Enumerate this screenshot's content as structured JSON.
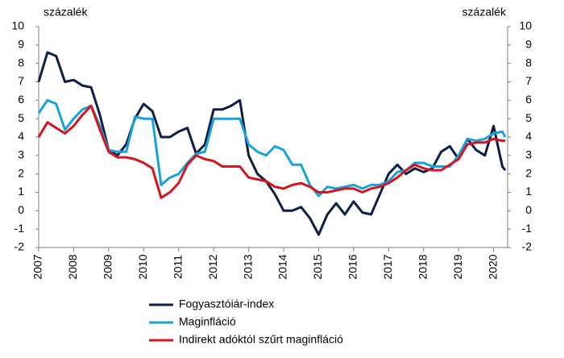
{
  "chart_data": {
    "type": "line",
    "y_label": "százalék",
    "y2_label": "százalék",
    "x": [
      2007,
      2007.25,
      2007.5,
      2007.75,
      2008,
      2008.25,
      2008.5,
      2008.75,
      2009,
      2009.25,
      2009.5,
      2009.75,
      2010,
      2010.25,
      2010.5,
      2010.75,
      2011,
      2011.25,
      2011.5,
      2011.75,
      2012,
      2012.25,
      2012.5,
      2012.75,
      2013,
      2013.25,
      2013.5,
      2013.75,
      2014,
      2014.25,
      2014.5,
      2014.75,
      2015,
      2015.25,
      2015.5,
      2015.75,
      2016,
      2016.25,
      2016.5,
      2016.75,
      2017,
      2017.25,
      2017.5,
      2017.75,
      2018,
      2018.25,
      2018.5,
      2018.75,
      2019,
      2019.25,
      2019.5,
      2019.75,
      2020,
      2020.25,
      2020.33
    ],
    "series": [
      {
        "name": "Fogyasztóiár-index",
        "color": "#0d1f45",
        "values": [
          7.0,
          8.6,
          8.4,
          7.0,
          7.1,
          6.8,
          6.7,
          5.2,
          3.3,
          3.0,
          3.6,
          5.0,
          5.8,
          5.4,
          4.0,
          4.0,
          4.3,
          4.5,
          3.1,
          3.6,
          5.5,
          5.5,
          5.7,
          6.0,
          3.0,
          2.0,
          1.6,
          0.9,
          0.0,
          0.0,
          0.2,
          -0.4,
          -1.3,
          -0.2,
          0.4,
          -0.2,
          0.5,
          -0.1,
          -0.2,
          0.9,
          2.0,
          2.5,
          2.0,
          2.3,
          2.1,
          2.3,
          3.2,
          3.5,
          2.8,
          3.9,
          3.3,
          3.0,
          4.6,
          2.4,
          2.2
        ]
      },
      {
        "name": "Maginfláció",
        "color": "#16a2dc",
        "values": [
          5.3,
          6.0,
          5.8,
          4.4,
          5.0,
          5.5,
          5.7,
          4.6,
          3.3,
          3.2,
          3.2,
          5.1,
          5.0,
          5.0,
          1.4,
          1.8,
          2.0,
          2.6,
          3.1,
          3.2,
          5.0,
          5.0,
          5.0,
          5.0,
          3.6,
          3.2,
          3.0,
          3.5,
          3.3,
          2.5,
          2.5,
          1.4,
          0.8,
          1.3,
          1.2,
          1.3,
          1.4,
          1.2,
          1.4,
          1.4,
          1.6,
          2.1,
          2.2,
          2.6,
          2.6,
          2.4,
          2.4,
          2.4,
          3.0,
          3.9,
          3.8,
          3.9,
          4.2,
          4.3,
          4.0
        ]
      },
      {
        "name": "Indirekt adóktól szűrt maginfláció",
        "color": "#d7141e",
        "values": [
          4.0,
          4.8,
          4.5,
          4.2,
          4.6,
          5.2,
          5.7,
          4.4,
          3.2,
          2.9,
          2.9,
          2.8,
          2.6,
          2.3,
          0.7,
          1.0,
          1.5,
          2.5,
          3.0,
          2.8,
          2.7,
          2.4,
          2.4,
          2.4,
          1.8,
          1.7,
          1.6,
          1.3,
          1.2,
          1.4,
          1.5,
          1.3,
          1.0,
          1.0,
          1.1,
          1.2,
          1.2,
          1.0,
          1.2,
          1.3,
          1.5,
          1.8,
          2.2,
          2.5,
          2.3,
          2.2,
          2.2,
          2.5,
          2.8,
          3.6,
          3.7,
          3.7,
          3.9,
          3.8,
          3.8
        ]
      }
    ],
    "xlim": [
      2007,
      2020.4
    ],
    "xticks": [
      2007,
      2008,
      2009,
      2010,
      2011,
      2012,
      2013,
      2014,
      2015,
      2016,
      2017,
      2018,
      2019,
      2020
    ],
    "ylim": [
      -2,
      10
    ],
    "yticks": [
      -2,
      -1,
      0,
      1,
      2,
      3,
      4,
      5,
      6,
      7,
      8,
      9,
      10
    ],
    "y2lim": [
      -2,
      10
    ],
    "y2ticks": [
      -2,
      -1,
      0,
      1,
      2,
      3,
      4,
      5,
      6,
      7,
      8,
      9,
      10
    ],
    "grid": false,
    "legend": "bottom"
  }
}
